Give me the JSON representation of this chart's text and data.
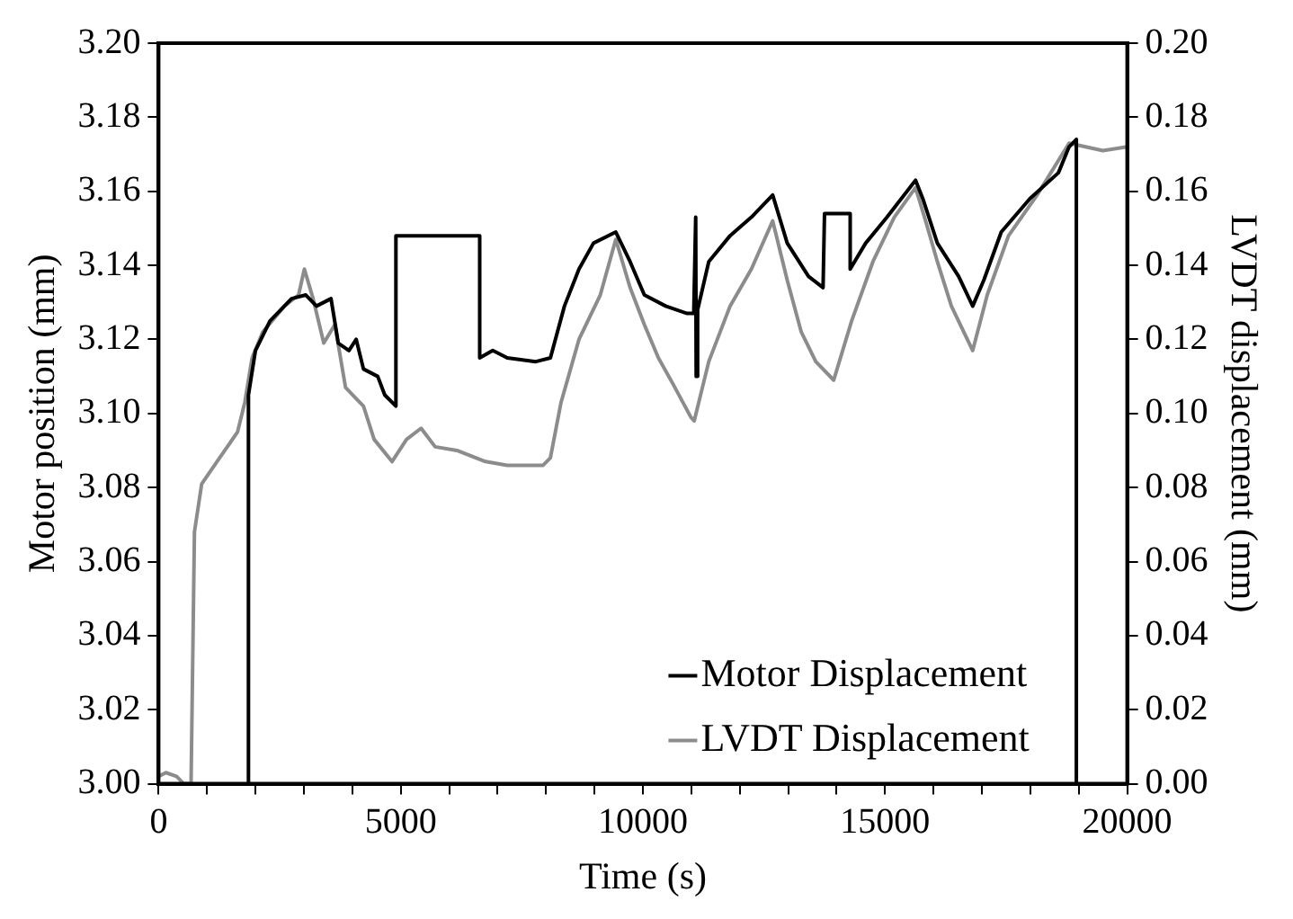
{
  "chart_data": {
    "type": "line",
    "xlabel": "Time (s)",
    "ylabel": "Motor position (mm)",
    "y2label": "LVDT displacement (mm)",
    "xlim": [
      0,
      20000
    ],
    "xticks": [
      0,
      {
        "value": 1000,
        "label": null
      },
      {
        "value": 2000,
        "label": null
      },
      {
        "value": 3000,
        "label": null
      },
      {
        "value": 4000,
        "label": null
      },
      5000,
      {
        "value": 6000,
        "label": null
      },
      {
        "value": 7000,
        "label": null
      },
      {
        "value": 8000,
        "label": null
      },
      {
        "value": 9000,
        "label": null
      },
      10000,
      {
        "value": 11000,
        "label": null
      },
      {
        "value": 12000,
        "label": null
      },
      {
        "value": 13000,
        "label": null
      },
      {
        "value": 14000,
        "label": null
      },
      15000,
      {
        "value": 16000,
        "label": null
      },
      {
        "value": 17000,
        "label": null
      },
      {
        "value": 18000,
        "label": null
      },
      {
        "value": 19000,
        "label": null
      },
      20000
    ],
    "ylim": [
      3.0,
      3.2
    ],
    "yticks": [
      {
        "value": 3.0,
        "label": "3.00"
      },
      {
        "value": 3.02,
        "label": "3.02"
      },
      {
        "value": 3.04,
        "label": "3.04"
      },
      {
        "value": 3.06,
        "label": "3.06"
      },
      {
        "value": 3.08,
        "label": "3.08"
      },
      {
        "value": 3.1,
        "label": "3.10"
      },
      {
        "value": 3.12,
        "label": "3.12"
      },
      {
        "value": 3.14,
        "label": "3.14"
      },
      {
        "value": 3.16,
        "label": "3.16"
      },
      {
        "value": 3.18,
        "label": "3.18"
      },
      {
        "value": 3.2,
        "label": "3.20"
      }
    ],
    "y2lim": [
      0,
      0.2
    ],
    "y2ticks": [
      {
        "value": 0,
        "label": "0.00"
      },
      {
        "value": 0.02,
        "label": "0.02"
      },
      {
        "value": 0.04,
        "label": "0.04"
      },
      {
        "value": 0.06,
        "label": "0.06"
      },
      {
        "value": 0.08,
        "label": "0.08"
      },
      {
        "value": 0.1,
        "label": "0.10"
      },
      {
        "value": 0.12,
        "label": "0.12"
      },
      {
        "value": 0.14,
        "label": "0.14"
      },
      {
        "value": 0.16,
        "label": "0.16"
      },
      {
        "value": 0.18,
        "label": "0.18"
      },
      {
        "value": 0.2,
        "label": "0.20"
      }
    ],
    "grid": false,
    "legend": "bottom right",
    "marker": "none",
    "line_style": "solid",
    "series": [
      {
        "name": "Motor Displacement",
        "color": "#000000",
        "x": [
          1855,
          1855,
          2000,
          2300,
          2745,
          3040,
          3260,
          3560,
          3710,
          3930,
          4080,
          4230,
          4525,
          4670,
          4900,
          4900,
          6630,
          6630,
          6900,
          7200,
          7790,
          8090,
          8380,
          8680,
          8980,
          9440,
          9735,
          10030,
          10470,
          10915,
          11050,
          11090,
          11100,
          11130,
          11360,
          11800,
          12240,
          12680,
          12980,
          13420,
          13720,
          13750,
          14280,
          14280,
          14600,
          15040,
          15630,
          15780,
          16080,
          16520,
          16810,
          17040,
          17400,
          17990,
          18580,
          18800,
          18950,
          18950
        ],
        "values": [
          3.0,
          3.105,
          3.117,
          3.125,
          3.131,
          3.132,
          3.129,
          3.131,
          3.119,
          3.117,
          3.12,
          3.112,
          3.11,
          3.105,
          3.102,
          3.148,
          3.148,
          3.115,
          3.117,
          3.115,
          3.114,
          3.115,
          3.129,
          3.139,
          3.146,
          3.149,
          3.141,
          3.132,
          3.129,
          3.127,
          3.127,
          3.153,
          3.11,
          3.128,
          3.141,
          3.148,
          3.153,
          3.159,
          3.146,
          3.137,
          3.134,
          3.154,
          3.154,
          3.139,
          3.146,
          3.153,
          3.163,
          3.158,
          3.146,
          3.137,
          3.129,
          3.136,
          3.149,
          3.158,
          3.165,
          3.172,
          3.174,
          3.0
        ]
      },
      {
        "name": "LVDT Displacement",
        "color": "#8c8c8c",
        "axis": "y2",
        "x": [
          0,
          150,
          370,
          520,
          670,
          740,
          890,
          1260,
          1630,
          1780,
          1930,
          2150,
          2600,
          2890,
          3010,
          3190,
          3410,
          3640,
          3860,
          4080,
          4230,
          4450,
          4820,
          5120,
          5420,
          5710,
          6160,
          6750,
          7200,
          7940,
          8090,
          8310,
          8680,
          9120,
          9440,
          9735,
          10030,
          10320,
          10620,
          10990,
          11060,
          11360,
          11800,
          12240,
          12680,
          12980,
          13270,
          13570,
          13940,
          14310,
          14750,
          15190,
          15630,
          15860,
          16080,
          16370,
          16810,
          17110,
          17550,
          18140,
          18800,
          19500,
          20000
        ],
        "values": [
          0.002,
          0.003,
          0.002,
          0.0,
          0.0,
          0.068,
          0.081,
          0.088,
          0.095,
          0.103,
          0.115,
          0.122,
          0.129,
          0.132,
          0.139,
          0.131,
          0.119,
          0.124,
          0.107,
          0.104,
          0.102,
          0.093,
          0.087,
          0.093,
          0.096,
          0.091,
          0.09,
          0.087,
          0.086,
          0.086,
          0.088,
          0.103,
          0.12,
          0.132,
          0.147,
          0.134,
          0.124,
          0.115,
          0.108,
          0.099,
          0.098,
          0.114,
          0.129,
          0.139,
          0.152,
          0.136,
          0.122,
          0.114,
          0.109,
          0.125,
          0.141,
          0.153,
          0.161,
          0.151,
          0.141,
          0.129,
          0.117,
          0.132,
          0.148,
          0.159,
          0.173,
          0.171,
          0.172
        ]
      }
    ]
  }
}
